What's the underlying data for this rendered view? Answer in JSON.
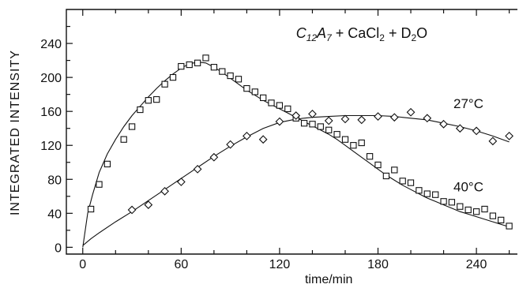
{
  "chart_data": {
    "type": "scatter",
    "title_parts": {
      "a": "C",
      "a_sub": "12",
      "b": "A",
      "b_sub": "7",
      "mid": " + CaCl",
      "mid_sub": "2",
      "end": " + D",
      "end_sub": "2",
      "tail": "O"
    },
    "xlabel": "time/min",
    "ylabel": "INTEGRATED  INTENSITY",
    "xlim": [
      -10,
      265
    ],
    "ylim": [
      -8,
      280
    ],
    "xticks": [
      0,
      60,
      120,
      180,
      240
    ],
    "yticks": [
      0,
      40,
      80,
      120,
      160,
      200,
      240
    ],
    "x_minor_step": 20,
    "y_minor_step": 20,
    "grid": false,
    "series": [
      {
        "name": "40°C",
        "marker": "square",
        "points": [
          [
            5,
            45
          ],
          [
            10,
            74
          ],
          [
            15,
            98
          ],
          [
            25,
            127
          ],
          [
            30,
            142
          ],
          [
            35,
            162
          ],
          [
            40,
            173
          ],
          [
            45,
            174
          ],
          [
            50,
            192
          ],
          [
            55,
            200
          ],
          [
            60,
            213
          ],
          [
            65,
            215
          ],
          [
            70,
            217
          ],
          [
            75,
            223
          ],
          [
            80,
            212
          ],
          [
            85,
            207
          ],
          [
            90,
            202
          ],
          [
            95,
            198
          ],
          [
            100,
            187
          ],
          [
            105,
            183
          ],
          [
            110,
            176
          ],
          [
            115,
            170
          ],
          [
            120,
            167
          ],
          [
            125,
            163
          ],
          [
            130,
            152
          ],
          [
            135,
            146
          ],
          [
            140,
            145
          ],
          [
            145,
            142
          ],
          [
            150,
            138
          ],
          [
            155,
            133
          ],
          [
            160,
            127
          ],
          [
            165,
            120
          ],
          [
            170,
            123
          ],
          [
            175,
            107
          ],
          [
            180,
            97
          ],
          [
            185,
            84
          ],
          [
            190,
            91
          ],
          [
            195,
            78
          ],
          [
            200,
            76
          ],
          [
            205,
            67
          ],
          [
            210,
            63
          ],
          [
            215,
            62
          ],
          [
            220,
            54
          ],
          [
            225,
            53
          ],
          [
            230,
            48
          ],
          [
            235,
            44
          ],
          [
            240,
            42
          ],
          [
            245,
            45
          ],
          [
            250,
            37
          ],
          [
            255,
            32
          ],
          [
            260,
            25
          ]
        ],
        "curve": [
          [
            0,
            0
          ],
          [
            3,
            40
          ],
          [
            6,
            62
          ],
          [
            10,
            88
          ],
          [
            15,
            110
          ],
          [
            20,
            127
          ],
          [
            25,
            142
          ],
          [
            30,
            155
          ],
          [
            35,
            166
          ],
          [
            40,
            177
          ],
          [
            45,
            187
          ],
          [
            50,
            196
          ],
          [
            55,
            204
          ],
          [
            60,
            211
          ],
          [
            65,
            216
          ],
          [
            70,
            218
          ],
          [
            75,
            217
          ],
          [
            80,
            212
          ],
          [
            85,
            206
          ],
          [
            90,
            199
          ],
          [
            95,
            192
          ],
          [
            100,
            185
          ],
          [
            105,
            179
          ],
          [
            110,
            173
          ],
          [
            115,
            168
          ],
          [
            120,
            163
          ],
          [
            125,
            158
          ],
          [
            130,
            153
          ],
          [
            135,
            148
          ],
          [
            140,
            143
          ],
          [
            145,
            138
          ],
          [
            150,
            133
          ],
          [
            155,
            127
          ],
          [
            160,
            120
          ],
          [
            165,
            113
          ],
          [
            170,
            106
          ],
          [
            175,
            99
          ],
          [
            180,
            92
          ],
          [
            185,
            85
          ],
          [
            190,
            79
          ],
          [
            195,
            73
          ],
          [
            200,
            68
          ],
          [
            205,
            63
          ],
          [
            210,
            58
          ],
          [
            215,
            54
          ],
          [
            220,
            50
          ],
          [
            225,
            46
          ],
          [
            230,
            42
          ],
          [
            235,
            39
          ],
          [
            240,
            36
          ],
          [
            245,
            33
          ],
          [
            250,
            30
          ],
          [
            255,
            27
          ],
          [
            260,
            24
          ]
        ]
      },
      {
        "name": "27°C",
        "marker": "diamond",
        "points": [
          [
            30,
            44
          ],
          [
            40,
            50
          ],
          [
            50,
            66
          ],
          [
            60,
            77
          ],
          [
            70,
            92
          ],
          [
            80,
            106
          ],
          [
            90,
            121
          ],
          [
            100,
            131
          ],
          [
            110,
            127
          ],
          [
            120,
            148
          ],
          [
            130,
            155
          ],
          [
            140,
            157
          ],
          [
            150,
            149
          ],
          [
            160,
            151
          ],
          [
            170,
            150
          ],
          [
            180,
            154
          ],
          [
            190,
            153
          ],
          [
            200,
            159
          ],
          [
            210,
            152
          ],
          [
            220,
            145
          ],
          [
            230,
            140
          ],
          [
            240,
            137
          ],
          [
            250,
            125
          ],
          [
            260,
            131
          ]
        ],
        "curve": [
          [
            0,
            2
          ],
          [
            5,
            10
          ],
          [
            10,
            17
          ],
          [
            20,
            30
          ],
          [
            30,
            42
          ],
          [
            40,
            55
          ],
          [
            50,
            68
          ],
          [
            60,
            81
          ],
          [
            70,
            94
          ],
          [
            80,
            107
          ],
          [
            90,
            119
          ],
          [
            100,
            130
          ],
          [
            110,
            140
          ],
          [
            120,
            147
          ],
          [
            130,
            151
          ],
          [
            140,
            153
          ],
          [
            150,
            154
          ],
          [
            160,
            155
          ],
          [
            170,
            155
          ],
          [
            180,
            155
          ],
          [
            190,
            154
          ],
          [
            200,
            152
          ],
          [
            210,
            150
          ],
          [
            220,
            146
          ],
          [
            230,
            142
          ],
          [
            240,
            137
          ],
          [
            250,
            131
          ],
          [
            260,
            124
          ]
        ]
      }
    ],
    "annotations": [
      {
        "text": "27°C",
        "x": 226,
        "y": 164
      },
      {
        "text": "40°C",
        "x": 226,
        "y": 66
      }
    ]
  }
}
